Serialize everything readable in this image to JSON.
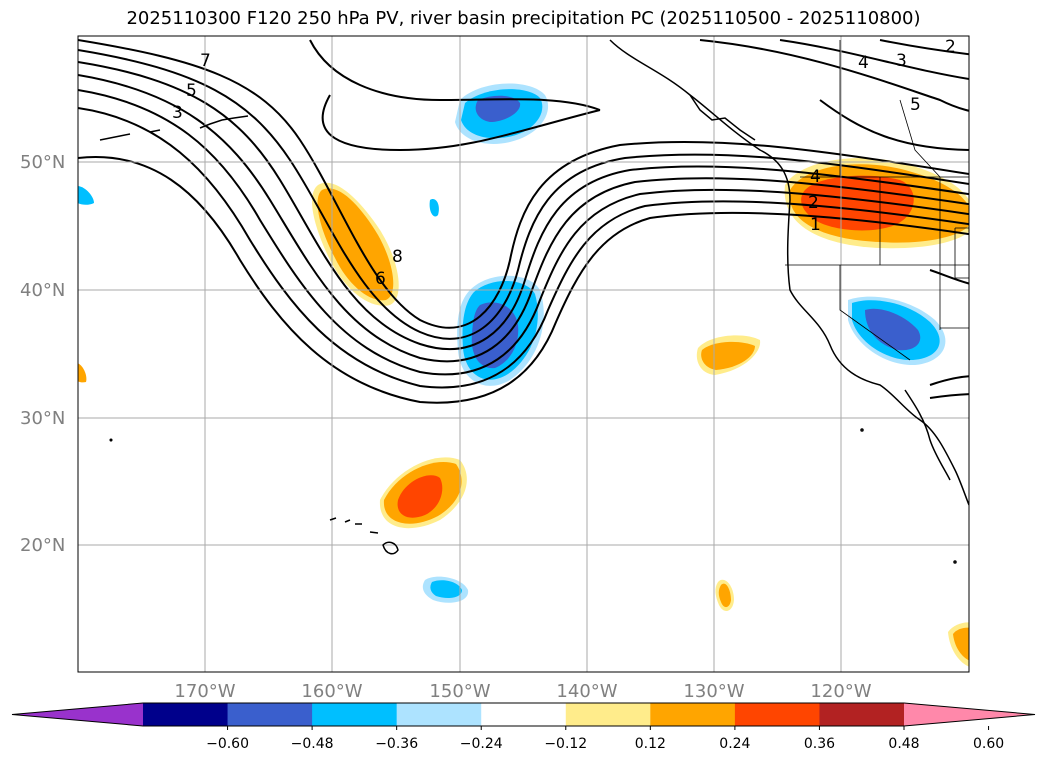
{
  "title": "2025110300 F120 250 hPa PV, river basin precipitation PC (2025110500 - 2025110800)",
  "map": {
    "lat_labels": [
      "50°N",
      "40°N",
      "30°N",
      "20°N"
    ],
    "lon_labels": [
      "170°W",
      "160°W",
      "150°W",
      "140°W",
      "130°W",
      "120°W"
    ],
    "lon_range": [
      -180,
      -110
    ],
    "lat_range": [
      10,
      60
    ],
    "gridlines": true,
    "contour_labels": [
      "7",
      "5",
      "3",
      "8",
      "6",
      "3",
      "4",
      "5",
      "2",
      "4",
      "2",
      "1"
    ]
  },
  "colorbar": {
    "tick_labels": [
      "−0.60",
      "−0.48",
      "−0.36",
      "−0.24",
      "−0.12",
      "0.12",
      "0.24",
      "0.36",
      "0.48",
      "0.60"
    ],
    "colors": [
      "#9932CC",
      "#00008B",
      "#3A5FCD",
      "#00BFFF",
      "#ADE3FF",
      "#FFFFFF",
      "#FFEC8B",
      "#FFA500",
      "#FF4500",
      "#B22222",
      "#FF88AA"
    ]
  },
  "anomaly_colors": {
    "pos1": "#FFEC8B",
    "pos2": "#FFA500",
    "pos3": "#FF4500",
    "neg1": "#ADE3FF",
    "neg2": "#00BFFF",
    "neg3": "#3A5FCD"
  }
}
